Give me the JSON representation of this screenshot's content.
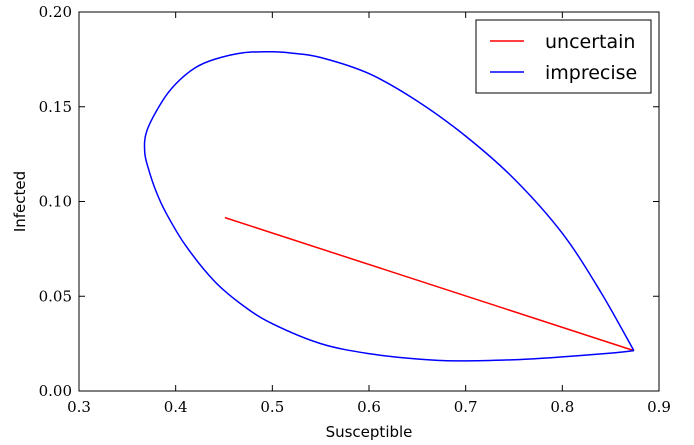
{
  "chart_data": {
    "type": "line",
    "xlabel": "Susceptible",
    "ylabel": "Infected",
    "xlim": [
      0.3,
      0.9
    ],
    "ylim": [
      0.0,
      0.2
    ],
    "x_ticks": [
      0.3,
      0.4,
      0.5,
      0.6,
      0.7,
      0.8,
      0.9
    ],
    "y_ticks": [
      0.0,
      0.05,
      0.1,
      0.15,
      0.2
    ],
    "x_tick_labels": [
      "0.3",
      "0.4",
      "0.5",
      "0.6",
      "0.7",
      "0.8",
      "0.9"
    ],
    "y_tick_labels": [
      "0.00",
      "0.05",
      "0.10",
      "0.15",
      "0.20"
    ],
    "grid": false,
    "legend": "top-right",
    "series": [
      {
        "name": "uncertain",
        "color": "#ff0000",
        "x": [
          0.451,
          0.874
        ],
        "y": [
          0.0915,
          0.0213
        ]
      },
      {
        "name": "imprecise",
        "color": "#0000ff",
        "x": [
          0.874,
          0.84,
          0.8,
          0.75,
          0.7,
          0.65,
          0.6,
          0.55,
          0.52,
          0.5,
          0.47,
          0.44,
          0.42,
          0.4,
          0.385,
          0.37,
          0.368,
          0.372,
          0.38,
          0.39,
          0.41,
          0.44,
          0.47,
          0.5,
          0.55,
          0.6,
          0.65,
          0.69,
          0.75,
          0.8,
          0.85,
          0.874
        ],
        "y": [
          0.0213,
          0.052,
          0.0832,
          0.112,
          0.1345,
          0.153,
          0.1675,
          0.176,
          0.1783,
          0.179,
          0.1785,
          0.175,
          0.1705,
          0.162,
          0.152,
          0.137,
          0.126,
          0.117,
          0.105,
          0.094,
          0.077,
          0.058,
          0.045,
          0.0355,
          0.025,
          0.0197,
          0.0169,
          0.0159,
          0.0165,
          0.018,
          0.02,
          0.0213
        ]
      }
    ]
  }
}
